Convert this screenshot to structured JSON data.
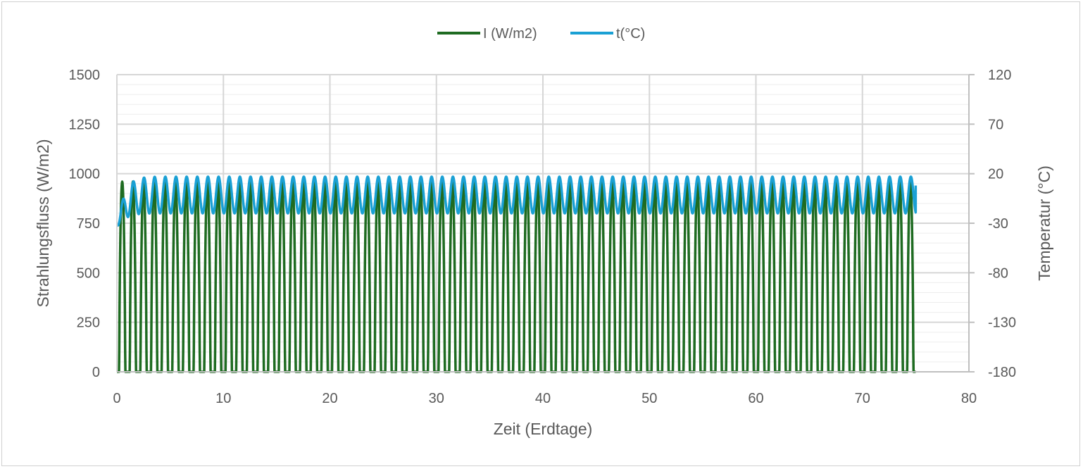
{
  "chart_data": {
    "type": "line",
    "xlabel": "Zeit (Erdtage)",
    "ylabel": "Strahlungsfluss (W/m2)",
    "y2label": "Temperatur (°C)",
    "xlim": [
      0,
      80
    ],
    "ylim": [
      0,
      1500
    ],
    "y2lim": [
      -180,
      120
    ],
    "xticks": [
      "0",
      "10",
      "20",
      "30",
      "40",
      "50",
      "60",
      "70",
      "80"
    ],
    "yticks": [
      "0",
      "250",
      "500",
      "750",
      "1000",
      "1250",
      "1500"
    ],
    "y2ticks": [
      "-180",
      "-130",
      "-80",
      "-30",
      "20",
      "70",
      "120"
    ],
    "grid": true,
    "legend_position": "top",
    "series": [
      {
        "name": "I (W/m2)",
        "axis": "left",
        "color": "#1e6b21",
        "shape": "daily half-sine pulses, period 1 Erdtag, duration 0–75 Erdtage",
        "peak_value": 960,
        "min_value": 0
      },
      {
        "name": "t(°C)",
        "axis": "right",
        "color": "#1aa0d4",
        "shape": "daily oscillation, period 1 Erdtag, duration 0–75 Erdtage",
        "start_value": -32,
        "initial_min": -42,
        "max_value": 17,
        "min_value": -20,
        "end_value": 8
      }
    ]
  }
}
